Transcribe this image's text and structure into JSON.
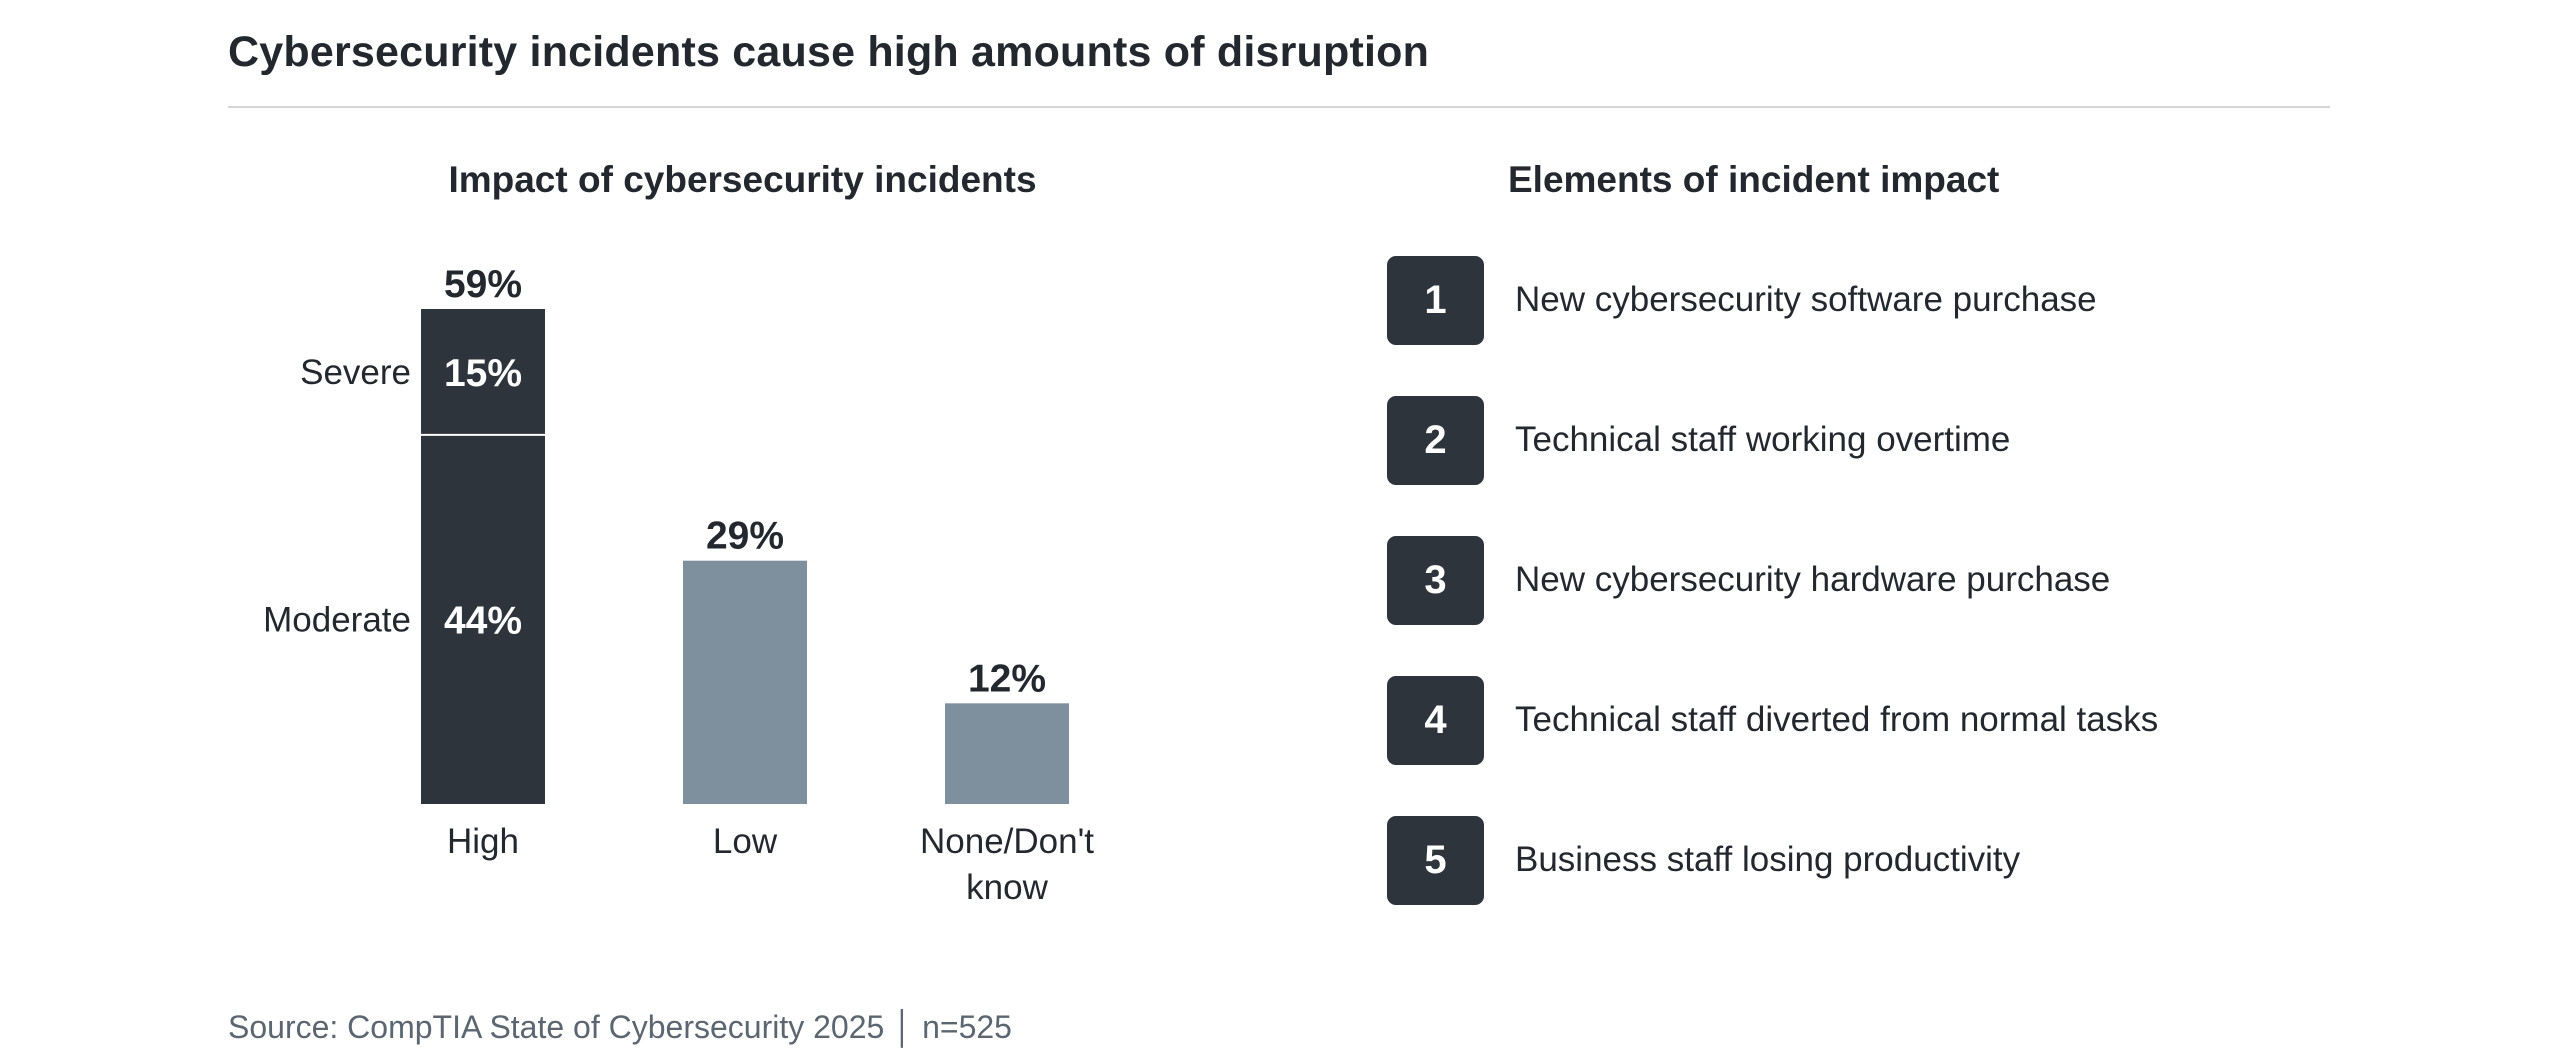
{
  "title": "Cybersecurity incidents cause high amounts of disruption",
  "chart_data": {
    "type": "bar",
    "title": "Impact of cybersecurity incidents",
    "categories": [
      "High",
      "Low",
      "None/Don't know"
    ],
    "category_lines": [
      [
        "High"
      ],
      [
        "Low"
      ],
      [
        "None/Don't",
        "know"
      ]
    ],
    "totals": [
      59,
      29,
      12
    ],
    "total_labels": [
      "59%",
      "29%",
      "12%"
    ],
    "stacked_segments": [
      {
        "category": "High",
        "label": "Moderate",
        "value": 44,
        "value_label": "44%"
      },
      {
        "category": "High",
        "label": "Severe",
        "value": 15,
        "value_label": "15%"
      }
    ],
    "ylim": [
      0,
      59
    ],
    "grid": false,
    "colors": {
      "high": "#2d343c",
      "other": "#7e8f9e",
      "segment_divider": "#ffffff"
    }
  },
  "elements": {
    "title": "Elements of incident impact",
    "items": [
      {
        "number": "1",
        "label": "New cybersecurity software purchase"
      },
      {
        "number": "2",
        "label": "Technical staff working overtime"
      },
      {
        "number": "3",
        "label": "New cybersecurity hardware purchase"
      },
      {
        "number": "4",
        "label": "Technical staff diverted from normal tasks"
      },
      {
        "number": "5",
        "label": "Business staff losing productivity"
      }
    ]
  },
  "source": "Source: CompTIA State of Cybersecurity 2025 │ n=525"
}
